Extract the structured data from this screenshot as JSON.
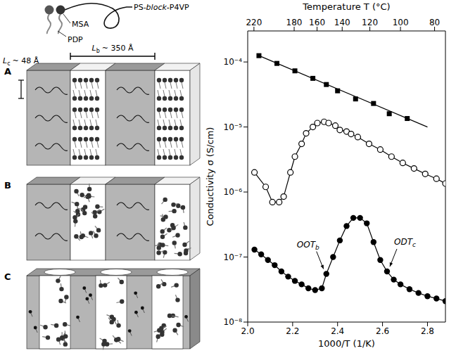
{
  "chart_data": {
    "type": "scatter",
    "x_label": "1000/T (1/K)",
    "y_label": "Conductivity σ (S/cm)",
    "top_axis": {
      "label": "Temperature T (°C)",
      "ticks": [
        220,
        180,
        160,
        140,
        120,
        100,
        80
      ]
    },
    "xlim": [
      2.0,
      2.88
    ],
    "xticks": [
      {
        "value": 2.0,
        "label": "2.0"
      },
      {
        "value": 2.2,
        "label": "2.2"
      },
      {
        "value": 2.4,
        "label": "2.4"
      },
      {
        "value": 2.6,
        "label": "2.6"
      },
      {
        "value": 2.8,
        "label": "2.8"
      }
    ],
    "ylim": [
      1e-08,
      0.0003
    ],
    "yticks": [
      {
        "value": 1e-08,
        "label": "10⁻⁸"
      },
      {
        "value": 1e-07,
        "label": "10⁻⁷"
      },
      {
        "value": 1e-06,
        "label": "10⁻⁶"
      },
      {
        "value": 1e-05,
        "label": "10⁻⁵"
      },
      {
        "value": 0.0001,
        "label": "10⁻⁴"
      }
    ],
    "log": "y",
    "grid": false,
    "series": [
      {
        "marker": "square",
        "line_style": "none",
        "color": "#000000",
        "x": [
          2.05,
          2.13,
          2.21,
          2.29,
          2.35,
          2.4,
          2.48,
          2.56,
          2.63,
          2.71
        ],
        "values": [
          0.000125,
          9.5e-05,
          7.3e-05,
          5.6e-05,
          4.5e-05,
          3.6e-05,
          2.7e-05,
          2.3e-05,
          1.6e-05,
          1.35e-05
        ]
      },
      {
        "marker": "none",
        "line_style": "solid",
        "color": "#000000",
        "x": [
          2.05,
          2.8
        ],
        "values": [
          0.000125,
          1e-05
        ]
      },
      {
        "marker": "open_circle",
        "line_style": "solid",
        "color": "#000000",
        "x": [
          2.03,
          2.08,
          2.11,
          2.14,
          2.16,
          2.19,
          2.21,
          2.24,
          2.26,
          2.29,
          2.31,
          2.34,
          2.36,
          2.39,
          2.41,
          2.44,
          2.46,
          2.49,
          2.54,
          2.59,
          2.64,
          2.69,
          2.74,
          2.79,
          2.84,
          2.88
        ],
        "values": [
          2e-06,
          1.2e-06,
          7e-07,
          7e-07,
          8.5e-07,
          2e-06,
          3.5e-06,
          5.5e-06,
          8e-06,
          1e-05,
          1.15e-05,
          1.2e-05,
          1.15e-05,
          1.05e-05,
          9e-06,
          8.5e-06,
          7.8e-06,
          7e-06,
          5.5e-06,
          4.5e-06,
          3.5e-06,
          2.8e-06,
          2.3e-06,
          1.9e-06,
          1.6e-06,
          1.35e-06
        ]
      },
      {
        "marker": "circle",
        "line_style": "solid",
        "color": "#000000",
        "x": [
          2.03,
          2.06,
          2.09,
          2.12,
          2.15,
          2.18,
          2.21,
          2.24,
          2.27,
          2.3,
          2.33,
          2.35,
          2.38,
          2.41,
          2.44,
          2.47,
          2.5,
          2.53,
          2.56,
          2.59,
          2.62,
          2.65,
          2.68,
          2.72,
          2.76,
          2.8,
          2.84,
          2.88
        ],
        "values": [
          1.3e-07,
          1.1e-07,
          9e-08,
          7.5e-08,
          6e-08,
          5e-08,
          4.3e-08,
          3.8e-08,
          3.3e-08,
          3.1e-08,
          3.3e-08,
          5.5e-08,
          1e-07,
          1.8e-07,
          3e-07,
          4e-07,
          4e-07,
          3.3e-07,
          1.7e-07,
          9e-08,
          6e-08,
          4.5e-08,
          3.8e-08,
          3.2e-08,
          2.8e-08,
          2.5e-08,
          2.3e-08,
          2.1e-08
        ]
      }
    ],
    "annotations": [
      {
        "text": "OOT",
        "sub": "b",
        "x": 2.35,
        "y": 5.5e-08
      },
      {
        "text": "ODT",
        "sub": "c",
        "x": 2.62,
        "y": 6e-08
      }
    ]
  },
  "diagram": {
    "molecule": {
      "polymer": "PS-block-P4VP",
      "head": "MSA",
      "tail": "PDP"
    },
    "dimensions": {
      "lamellar_thickness": {
        "symbol": "L",
        "sub": "c",
        "text": "~ 48 Å"
      },
      "period": {
        "symbol": "L",
        "sub": "b",
        "text": "~ 350 Å"
      }
    },
    "panels": [
      "A",
      "B",
      "C"
    ]
  }
}
